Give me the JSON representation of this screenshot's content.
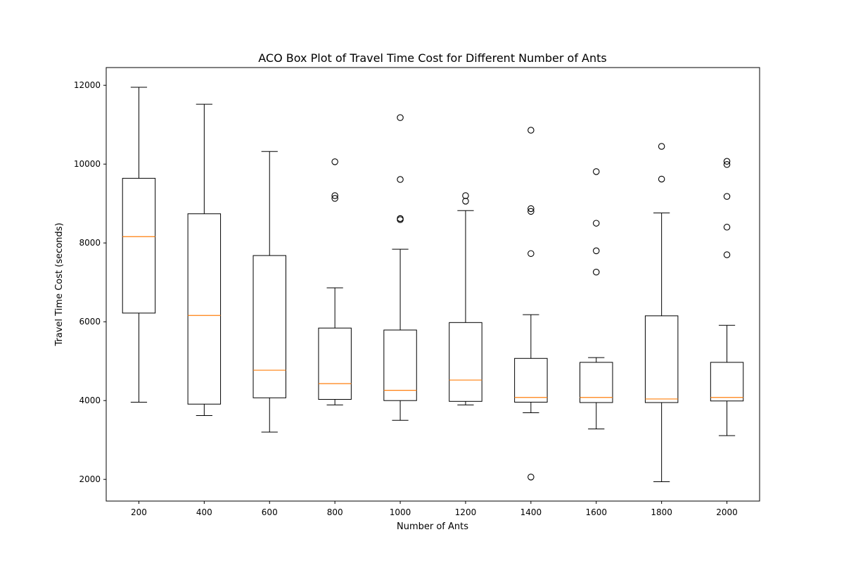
{
  "chart_data": {
    "type": "box",
    "title": "ACO Box Plot of Travel Time Cost for Different Number of Ants",
    "xlabel": "Number of Ants",
    "ylabel": "Travel Time Cost (seconds)",
    "ylim": [
      1450,
      12450
    ],
    "yticks": [
      2000,
      4000,
      6000,
      8000,
      10000,
      12000
    ],
    "grid": false,
    "colors": {
      "box": "#000000",
      "median": "#ff7f0e",
      "outlier": "#000000"
    },
    "categories": [
      "200",
      "400",
      "600",
      "800",
      "1000",
      "1200",
      "1400",
      "1600",
      "1800",
      "2000"
    ],
    "boxes": [
      {
        "label": "200",
        "whisker_low": 3960,
        "q1": 6220,
        "median": 8160,
        "q3": 9640,
        "whisker_high": 11950,
        "outliers": []
      },
      {
        "label": "400",
        "whisker_low": 3620,
        "q1": 3910,
        "median": 6160,
        "q3": 8740,
        "whisker_high": 11520,
        "outliers": []
      },
      {
        "label": "600",
        "whisker_low": 3200,
        "q1": 4070,
        "median": 4770,
        "q3": 7680,
        "whisker_high": 10320,
        "outliers": []
      },
      {
        "label": "800",
        "whisker_low": 3890,
        "q1": 4030,
        "median": 4430,
        "q3": 5840,
        "whisker_high": 6860,
        "outliers": [
          10060,
          9200,
          9130
        ]
      },
      {
        "label": "1000",
        "whisker_low": 3500,
        "q1": 4000,
        "median": 4260,
        "q3": 5790,
        "whisker_high": 7840,
        "outliers": [
          11180,
          9610,
          8620,
          8590
        ]
      },
      {
        "label": "1200",
        "whisker_low": 3890,
        "q1": 3980,
        "median": 4520,
        "q3": 5980,
        "whisker_high": 8820,
        "outliers": [
          9200,
          9060
        ]
      },
      {
        "label": "1400",
        "whisker_low": 3690,
        "q1": 3960,
        "median": 4080,
        "q3": 5070,
        "whisker_high": 6180,
        "outliers": [
          10860,
          8870,
          8800,
          7730,
          2060
        ]
      },
      {
        "label": "1600",
        "whisker_low": 3280,
        "q1": 3950,
        "median": 4080,
        "q3": 4970,
        "whisker_high": 5090,
        "outliers": [
          9810,
          8500,
          7800,
          7260
        ]
      },
      {
        "label": "1800",
        "whisker_low": 1940,
        "q1": 3950,
        "median": 4040,
        "q3": 6150,
        "whisker_high": 8760,
        "outliers": [
          10450,
          9620
        ]
      },
      {
        "label": "2000",
        "whisker_low": 3110,
        "q1": 3990,
        "median": 4080,
        "q3": 4970,
        "whisker_high": 5910,
        "outliers": [
          10070,
          9990,
          9180,
          8400,
          7700
        ]
      }
    ]
  }
}
